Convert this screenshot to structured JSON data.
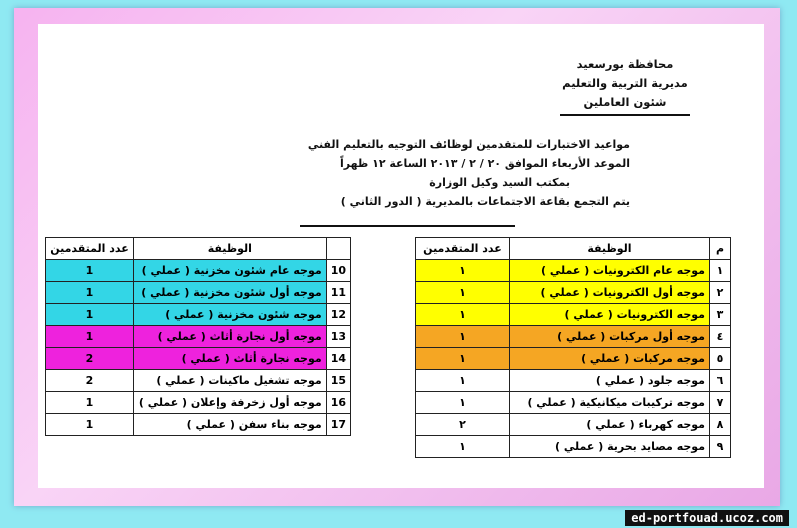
{
  "header": {
    "lines": [
      "محافظة بورسعيد",
      "مديرية التربية والتعليم",
      "شئون العاملين"
    ]
  },
  "title": {
    "lines": [
      "مواعيد الاختبارات للمتقدمين لوظائف التوجيه بالتعليم الفني",
      "الموعد الأربعاء الموافق ٢٠ / ٢ / ٢٠١٣ الساعة ١٢ ظهراً",
      "بمكتب السيد وكيل الوزارة",
      "يتم التجمع بقاعة الاجتماعات بالمديرية ( الدور الثاني )"
    ]
  },
  "right_table": {
    "headers": [
      "م",
      "الوظيفة",
      "عدد المتقدمين"
    ],
    "rows": [
      {
        "number": "١",
        "job": "موجه عام الكترونيات ( عملي )",
        "count": "١",
        "color": "#ffff00"
      },
      {
        "number": "٢",
        "job": "موجه أول الكترونيات ( عملي )",
        "count": "١",
        "color": "#ffff00"
      },
      {
        "number": "٣",
        "job": "موجه الكترونيات ( عملي )",
        "count": "١",
        "color": "#ffff00"
      },
      {
        "number": "٤",
        "job": "موجه أول مركبات ( عملي )",
        "count": "١",
        "color": "#f5a623"
      },
      {
        "number": "٥",
        "job": "موجه مركبات ( عملي )",
        "count": "١",
        "color": "#f5a623"
      },
      {
        "number": "٦",
        "job": "موجه جلود ( عملي )",
        "count": "١",
        "color": "#ffffff"
      },
      {
        "number": "٧",
        "job": "موجه تركيبات ميكانيكية ( عملي )",
        "count": "١",
        "color": "#ffffff"
      },
      {
        "number": "٨",
        "job": "موجه كهرباء ( عملي )",
        "count": "٢",
        "color": "#ffffff"
      },
      {
        "number": "٩",
        "job": "موجه مصايد بحرية ( عملي )",
        "count": "١",
        "color": "#ffffff"
      }
    ]
  },
  "left_table": {
    "headers": [
      "الوظيفة",
      "عدد المتقدمين"
    ],
    "rows": [
      {
        "number": "10",
        "job": "موجه عام شئون مخزنية ( عملي )",
        "count": "1",
        "color": "#33d6e6"
      },
      {
        "number": "11",
        "job": "موجه أول شئون مخزنية ( عملي )",
        "count": "1",
        "color": "#33d6e6"
      },
      {
        "number": "12",
        "job": "موجه شئون مخزنية ( عملي )",
        "count": "1",
        "color": "#33d6e6"
      },
      {
        "number": "13",
        "job": "موجه أول نجارة أثاث ( عملي )",
        "count": "1",
        "color": "#ee22dd"
      },
      {
        "number": "14",
        "job": "موجه نجارة أثاث ( عملي )",
        "count": "2",
        "color": "#ee22dd"
      },
      {
        "number": "15",
        "job": "موجه تشغيل ماكينات ( عملي )",
        "count": "2",
        "color": "#ffffff"
      },
      {
        "number": "16",
        "job": "موجه أول زخرفة وإعلان ( عملي )",
        "count": "1",
        "color": "#ffffff"
      },
      {
        "number": "17",
        "job": "موجه بناء سفن ( عملي )",
        "count": "1",
        "color": "#ffffff"
      }
    ]
  },
  "footer": "ed-portfouad.ucoz.com"
}
